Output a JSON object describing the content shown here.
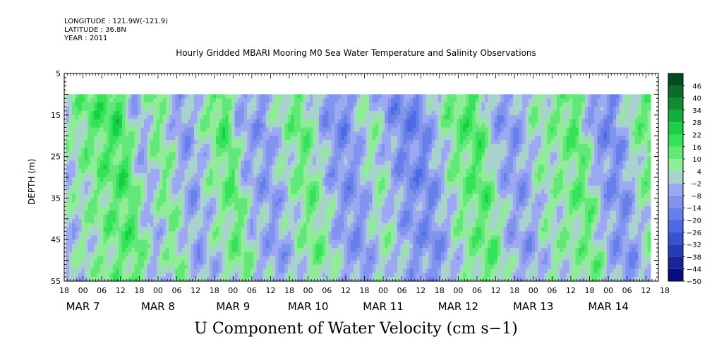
{
  "header": {
    "longitude": "LONGITUDE : 121.9W(-121.9)",
    "latitude": "LATITUDE : 36.8N",
    "year": "YEAR : 2011"
  },
  "chart_data": {
    "type": "heatmap",
    "title": "Hourly Gridded MBARI Mooring M0 Sea Water Temperature and Salinity Observations",
    "xlabel": "U Component of Water Velocity (cm s−1)",
    "ylabel": "DEPTH (m)",
    "y_ticks": [
      5,
      15,
      25,
      35,
      45,
      55
    ],
    "ylim": [
      5,
      55
    ],
    "y_inverted": true,
    "data_depth_range": [
      10,
      55
    ],
    "x_hour_ticks": [
      "18",
      "00",
      "06",
      "12",
      "18",
      "00",
      "06",
      "12",
      "18",
      "00",
      "06",
      "12",
      "18",
      "00",
      "06",
      "12",
      "18",
      "00",
      "06",
      "12",
      "18",
      "00",
      "06",
      "12",
      "18",
      "00",
      "06",
      "12",
      "18",
      "00",
      "06",
      "12",
      "18"
    ],
    "x_date_labels": [
      "MAR  7",
      "MAR  8",
      "MAR  9",
      "MAR 10",
      "MAR 11",
      "MAR 12",
      "MAR 13",
      "MAR 14"
    ],
    "data_time_range_hours": [
      0.5,
      187.5
    ],
    "colorbar": {
      "levels": [
        -50,
        -44,
        -38,
        -32,
        -26,
        -20,
        -14,
        -8,
        -2,
        4,
        10,
        16,
        22,
        28,
        34,
        40,
        46
      ],
      "tick_labels": [
        "46",
        "40",
        "34",
        "28",
        "22",
        "16",
        "10",
        "4",
        "−2",
        "−8",
        "−14",
        "−20",
        "−26",
        "−32",
        "−38",
        "−44",
        "−50"
      ],
      "range": [
        -50,
        52
      ],
      "colors": {
        "negative_strong": "#00006e",
        "negative_mid": "#3f5fe0",
        "negative_weak": "#a9b3f5",
        "positive_weak": "#a6f0a6",
        "positive_mid": "#1ee04a",
        "positive_strong": "#003a1a"
      }
    },
    "approx_u_at_surface_by_day": [
      {
        "date": "MAR 8 00",
        "u": 6
      },
      {
        "date": "MAR 8 18",
        "u": 24
      },
      {
        "date": "MAR 9 09",
        "u": 20
      },
      {
        "date": "MAR 10 00",
        "u": 6
      },
      {
        "date": "MAR 11 18",
        "u": -8
      },
      {
        "date": "MAR 12 12",
        "u": 18
      },
      {
        "date": "MAR 13 06",
        "u": 10
      },
      {
        "date": "MAR 13 12",
        "u": 20
      },
      {
        "date": "MAR 14 18",
        "u": 14
      }
    ]
  }
}
